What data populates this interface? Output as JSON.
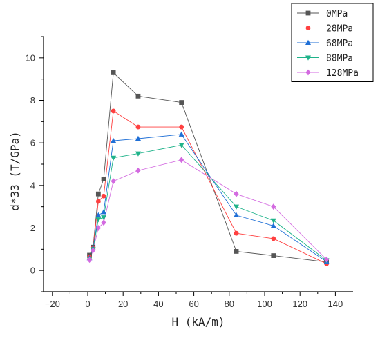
{
  "chart_data": {
    "type": "line",
    "xlabel": "H (kA/m)",
    "ylabel": "d*33 (T/GPa)",
    "xlim": [
      -25,
      150
    ],
    "ylim": [
      -1,
      11
    ],
    "xticks": [
      -20,
      0,
      20,
      40,
      60,
      80,
      100,
      120,
      140
    ],
    "yticks": [
      0,
      2,
      4,
      6,
      8,
      10
    ],
    "legend_position": "top-right",
    "grid": false,
    "series": [
      {
        "name": "0MPa",
        "color": "#555555",
        "marker": "square",
        "x": [
          1,
          3,
          6,
          9,
          14.5,
          28.5,
          53,
          84,
          105,
          135
        ],
        "y": [
          0.72,
          1.1,
          3.6,
          4.3,
          9.3,
          8.2,
          7.9,
          0.9,
          0.7,
          0.4
        ]
      },
      {
        "name": "28MPa",
        "color": "#ff4040",
        "marker": "circle",
        "x": [
          1,
          3,
          6,
          9,
          14.5,
          28.5,
          53,
          84,
          105,
          135
        ],
        "y": [
          0.62,
          1.05,
          3.25,
          3.5,
          7.5,
          6.75,
          6.75,
          1.75,
          1.5,
          0.32
        ]
      },
      {
        "name": "68MPa",
        "color": "#1f6fd6",
        "marker": "triangle-up",
        "x": [
          1,
          3,
          6,
          9,
          14.5,
          28.5,
          53,
          84,
          105,
          135
        ],
        "y": [
          0.58,
          1.05,
          2.6,
          2.75,
          6.1,
          6.2,
          6.4,
          2.6,
          2.1,
          0.42
        ]
      },
      {
        "name": "88MPa",
        "color": "#1fb38a",
        "marker": "triangle-down",
        "x": [
          1,
          3,
          6,
          9,
          14.5,
          28.5,
          53,
          84,
          105,
          135
        ],
        "y": [
          0.55,
          1.0,
          2.4,
          2.5,
          5.3,
          5.5,
          5.9,
          3.0,
          2.35,
          0.48
        ]
      },
      {
        "name": "128MPa",
        "color": "#d36ae0",
        "marker": "diamond",
        "x": [
          1,
          3,
          6,
          9,
          14.5,
          28.5,
          53,
          84,
          105,
          135
        ],
        "y": [
          0.5,
          0.95,
          2.0,
          2.25,
          4.2,
          4.7,
          5.2,
          3.6,
          3.0,
          0.52
        ]
      }
    ]
  }
}
